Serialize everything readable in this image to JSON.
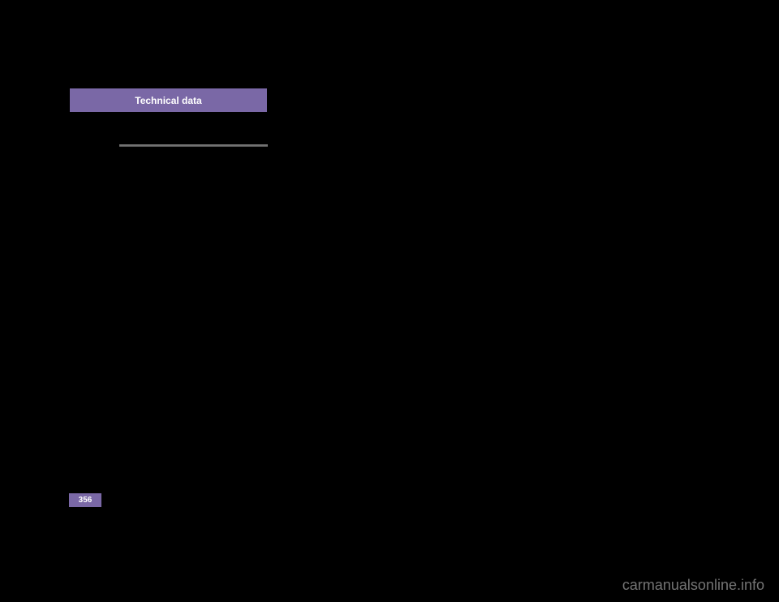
{
  "header": {
    "title": "Technical data",
    "background_color": "#7a68a6",
    "text_color": "#ffffff",
    "font_size": 12,
    "font_weight": "bold"
  },
  "divider": {
    "color_top": "#888888",
    "color_bottom": "#555555"
  },
  "page_number": {
    "value": "356",
    "background_color": "#7a68a6",
    "text_color": "#ffffff",
    "font_size": 10
  },
  "watermark": {
    "text": "carmanualsonline.info",
    "color": "#c0c0c0",
    "font_size": 18
  },
  "page_background": "#000000"
}
